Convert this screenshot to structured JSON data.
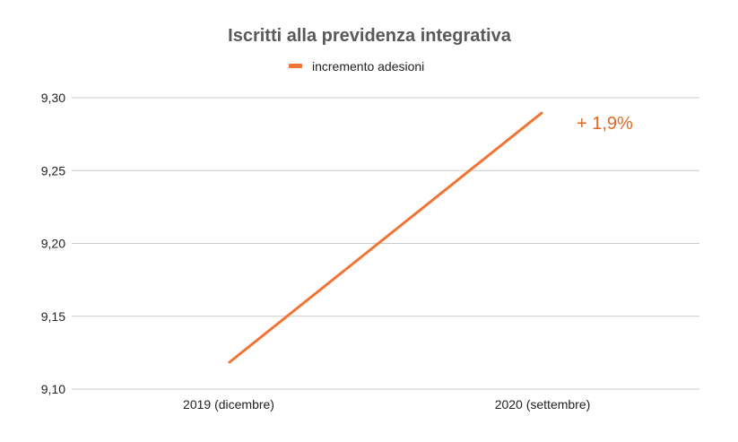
{
  "chart_data": {
    "type": "line",
    "title": "Iscritti alla previdenza integrativa",
    "categories": [
      "2019 (dicembre)",
      "2020 (settembre)"
    ],
    "series": [
      {
        "name": "incremento adesioni",
        "values": [
          9.118,
          9.29
        ],
        "color": "#f07534"
      }
    ],
    "ylim": [
      9.1,
      9.3
    ],
    "yticks": [
      "9,10",
      "9,15",
      "9,20",
      "9,25",
      "9,30"
    ],
    "ytick_values": [
      9.1,
      9.15,
      9.2,
      9.25,
      9.3
    ],
    "grid": true,
    "legend_position": "top-center",
    "annotation": {
      "text": "+ 1,9%",
      "color": "#e06a25"
    }
  }
}
